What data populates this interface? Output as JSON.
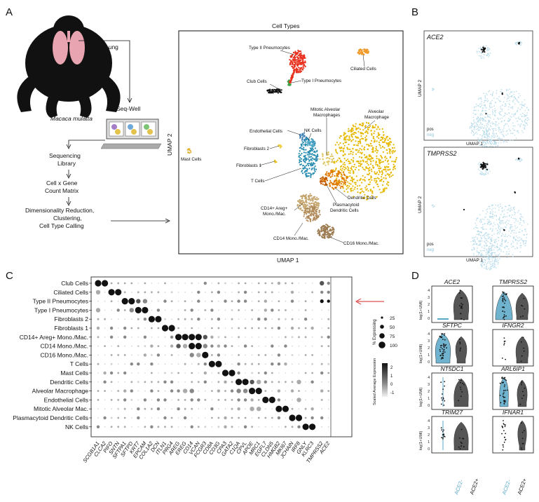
{
  "panels": {
    "a": "A",
    "b": "B",
    "c": "C",
    "d": "D"
  },
  "panelA": {
    "species": "Macaca mulatta",
    "lung": "Lung",
    "seqwell": "Seq-Well",
    "steps": [
      "Sequencing",
      "Library",
      "Cell x Gene",
      "Count Matrix",
      "Dimensionality Reduction,",
      "Clustering,",
      "Cell Type Calling"
    ],
    "umap_title": "Cell Types",
    "umap_xlabel": "UMAP 1",
    "umap_ylabel": "UMAP 2",
    "clusters": {
      "type2": "Type II Pneumocytes",
      "ciliated": "Ciliated Cells",
      "club": "Club Cells",
      "type1": "Type I Pneumocytes",
      "mitotic1": "Mitotic Alveolar",
      "mitotic2": "Macrophages",
      "alv1": "Alveolar",
      "alv2": "Macrophage",
      "endo": "Endothelial Cells",
      "nk": "NK Cells",
      "fib2": "Fibroblasts 2",
      "mast": "Mast Cells",
      "fib1": "Fibroblasts 1",
      "tcells": "T Cells",
      "dc": "Dendritic Cells",
      "pdc1": "Plasmacytoid",
      "pdc2": "Dendritic Cells",
      "cd14areg1": "CD14+ Areg+",
      "cd14areg2": "Mono./Mac.",
      "cd14": "CD14 Mono./Mac.",
      "cd16": "CD16 Mono./Mac."
    }
  },
  "panelB": {
    "genes": [
      "ACE2",
      "TMPRSS2"
    ],
    "pos": "pos",
    "neg": "neg",
    "xlabel": "UMAP 1",
    "ylabel": "UMAP 2"
  },
  "panelC": {
    "rows": [
      "Club Cells",
      "Ciliated Cells",
      "Type II Pneumocytes",
      "Type I Pneumocytes",
      "Fibroblasts 2",
      "Fibroblasts 1",
      "CD14+ Areg+ Mono./Mac.",
      "CD14 Mono./Mac.",
      "CD16 Mono./Mac.",
      "T Cells",
      "Mast Cells",
      "Dendritic Cells",
      "Alveolar Macrophage",
      "Endothelial Cells",
      "Mitotic Alveolar Mac.",
      "Plasmacytoid Dendritic Cells",
      "NK Cells"
    ],
    "genes": [
      "SCGB1A1",
      "CLCA2",
      "PIFO",
      "SNTN",
      "SFTPA1",
      "SFTPD",
      "KRT7",
      "EPCAM",
      "COL1A2",
      "DCN",
      "ITLN1",
      "PRG4",
      "AREG",
      "EREG",
      "CD14",
      "VCAN",
      "FCGR3",
      "CD8A",
      "CD3G",
      "CPA3",
      "GATA2",
      "C1QA",
      "CPVL",
      "APOE",
      "MRC1",
      "EGFL7",
      "CLDN5",
      "HMGB2",
      "MKI67",
      "JCHAIN",
      "IRF8",
      "GNLY",
      "KLRC3",
      "TMPRSS2",
      "ACE2"
    ],
    "size_title": "% Expressing",
    "size_values": [
      "25",
      "50",
      "75",
      "100"
    ],
    "color_title": "Scaled Average Expression",
    "color_ticks": [
      "2",
      "1",
      "0",
      "-1"
    ]
  },
  "panelD": {
    "genes": [
      "ACE2",
      "TMPRSS2",
      "SFTPC",
      "IFNGR2",
      "NT5DC1",
      "ARL6IP1",
      "TRIM27",
      "IFNAR1"
    ],
    "ylabel": "log(1+UMI)",
    "yticks": [
      "4",
      "3",
      "2",
      "1",
      "0"
    ],
    "xcats": [
      "ACE2-",
      "ACE2+"
    ]
  }
}
